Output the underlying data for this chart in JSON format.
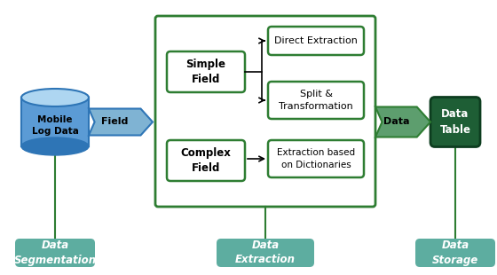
{
  "bg_color": "#ffffff",
  "fig_width": 5.6,
  "fig_height": 3.1,
  "dpi": 100,
  "cylinder_text": "Mobile\nLog Data",
  "field_arrow_label": "Field",
  "data_arrow_label": "Data",
  "simple_field_text": "Simple\nField",
  "complex_field_text": "Complex\nField",
  "direct_extraction_text": "Direct Extraction",
  "split_transform_text": "Split &\nTransformation",
  "extraction_dict_text": "Extraction based\non Dictionaries",
  "data_table_text": "Data\nTable",
  "outer_box_border": "#2e7d32",
  "inner_box_border": "#2e7d32",
  "label_bg_color": "#5dada0",
  "label_text_color": "#ffffff",
  "label_seg": "Data\nSegmentation",
  "label_ext": "Data\nExtraction",
  "label_stor": "Data\nStorage",
  "cyl_body_color": "#5b9bd5",
  "cyl_top_color": "#aed6f1",
  "cyl_dark_color": "#2e75b6",
  "field_arrow_light": "#7fb3d3",
  "field_arrow_dark": "#2e75b6",
  "data_arrow_light": "#5d9e6e",
  "data_arrow_dark": "#2e7d32",
  "data_table_fill": "#1e5e35",
  "data_table_border": "#0d3d1f",
  "line_color": "#2e7d32",
  "arrow_color": "#000000"
}
